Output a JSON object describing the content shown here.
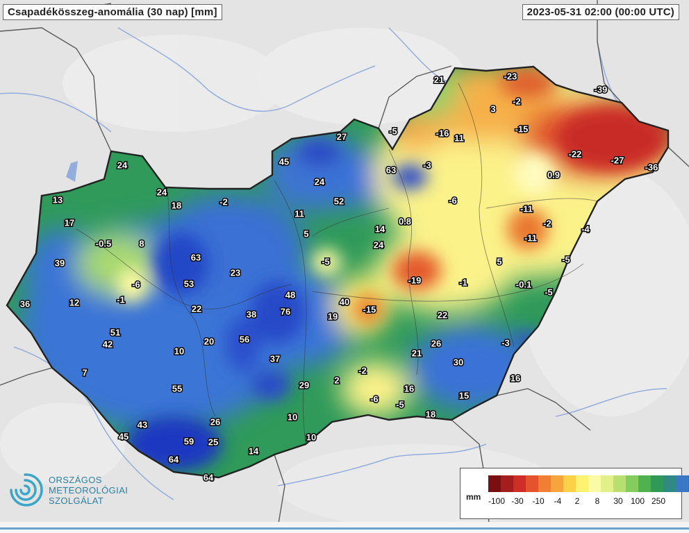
{
  "title": "Csapadékösszeg-anomália (30 nap) [mm]",
  "timestamp": "2023-05-31 02:00 (00:00 UTC)",
  "logo": {
    "lines": [
      "ORSZÁGOS",
      "METEOROLÓGIAI",
      "SZOLGÁLAT"
    ],
    "color": "#2e7fa3"
  },
  "legend": {
    "unit": "mm",
    "colors": [
      "#7a0f12",
      "#a51e1e",
      "#cd2e25",
      "#e5522d",
      "#f07e33",
      "#f6a53c",
      "#fbd247",
      "#fff270",
      "#fafba4",
      "#e2f08a",
      "#b8e070",
      "#85cc5f",
      "#4fb24e",
      "#2e9a56",
      "#2f8a83",
      "#3a78c6",
      "#3a68da",
      "#2b4fcf",
      "#1c33b2",
      "#2a1f95",
      "#4a1c8a",
      "#7b2b9a"
    ],
    "ticks": [
      "-100",
      "-30",
      "-10",
      "-4",
      "2",
      "8",
      "30",
      "100",
      "250"
    ]
  },
  "palette": {
    "background": "#e6e6e6",
    "border": "#555555",
    "green": "#2e9a56",
    "blue": "#3a72d8",
    "yellow": "#fbf28a",
    "red": "#d0312a"
  },
  "stations": [
    {
      "v": "21"
    },
    {
      "v": "-23"
    },
    {
      "v": "-39"
    },
    {
      "v": "-2"
    },
    {
      "v": "3"
    },
    {
      "v": "-15"
    },
    {
      "v": "-5"
    },
    {
      "v": "-16"
    },
    {
      "v": "11"
    },
    {
      "v": "27"
    },
    {
      "v": "-22"
    },
    {
      "v": "-27"
    },
    {
      "v": "-36"
    },
    {
      "v": "63"
    },
    {
      "v": "-3"
    },
    {
      "v": "45"
    },
    {
      "v": "24"
    },
    {
      "v": "0.9"
    },
    {
      "v": "24"
    },
    {
      "v": "24"
    },
    {
      "v": "52"
    },
    {
      "v": "-6"
    },
    {
      "v": "-11"
    },
    {
      "v": "13"
    },
    {
      "v": "18"
    },
    {
      "v": "-2"
    },
    {
      "v": "11"
    },
    {
      "v": "0.8"
    },
    {
      "v": "-2"
    },
    {
      "v": "-4"
    },
    {
      "v": "17"
    },
    {
      "v": "5"
    },
    {
      "v": "14"
    },
    {
      "v": "-11"
    },
    {
      "v": "-0.5"
    },
    {
      "v": "8"
    },
    {
      "v": "24"
    },
    {
      "v": "39"
    },
    {
      "v": "63"
    },
    {
      "v": "-5"
    },
    {
      "v": "5"
    },
    {
      "v": "-5"
    },
    {
      "v": "23"
    },
    {
      "v": "-19"
    },
    {
      "v": "-1"
    },
    {
      "v": "-0.1"
    },
    {
      "v": "-5"
    },
    {
      "v": "53"
    },
    {
      "v": "-6"
    },
    {
      "v": "-1"
    },
    {
      "v": "48"
    },
    {
      "v": "36"
    },
    {
      "v": "12"
    },
    {
      "v": "22"
    },
    {
      "v": "76"
    },
    {
      "v": "40"
    },
    {
      "v": "38"
    },
    {
      "v": "-15"
    },
    {
      "v": "19"
    },
    {
      "v": "22"
    },
    {
      "v": "51"
    },
    {
      "v": "-3"
    },
    {
      "v": "42"
    },
    {
      "v": "20"
    },
    {
      "v": "56"
    },
    {
      "v": "26"
    },
    {
      "v": "10"
    },
    {
      "v": "21"
    },
    {
      "v": "37"
    },
    {
      "v": "30"
    },
    {
      "v": "7"
    },
    {
      "v": "-2"
    },
    {
      "v": "16"
    },
    {
      "v": "2"
    },
    {
      "v": "29"
    },
    {
      "v": "55"
    },
    {
      "v": "16"
    },
    {
      "v": "-6"
    },
    {
      "v": "15"
    },
    {
      "v": "-5"
    },
    {
      "v": "10"
    },
    {
      "v": "18"
    },
    {
      "v": "26"
    },
    {
      "v": "43"
    },
    {
      "v": "45"
    },
    {
      "v": "59"
    },
    {
      "v": "25"
    },
    {
      "v": "10"
    },
    {
      "v": "14"
    },
    {
      "v": "64"
    },
    {
      "v": "64"
    }
  ]
}
